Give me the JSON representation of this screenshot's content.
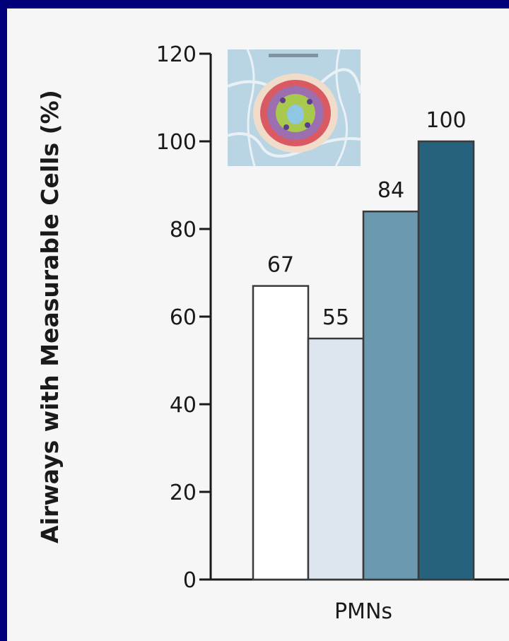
{
  "chart_data": {
    "type": "bar",
    "title": "",
    "xlabel": "",
    "ylabel": "Airways with Measurable Cells (%)",
    "ylim": [
      0,
      120
    ],
    "yticks": [
      0,
      20,
      40,
      60,
      80,
      100,
      120
    ],
    "categories": [
      "PMNs"
    ],
    "series": [
      {
        "values": [
          67
        ],
        "color": "#ffffff"
      },
      {
        "values": [
          55
        ],
        "color": "#dde6ee"
      },
      {
        "values": [
          84
        ],
        "color": "#6a99b0"
      },
      {
        "values": [
          100
        ],
        "color": "#26627d"
      }
    ],
    "grid": false,
    "legend": "none"
  },
  "inset_image": {
    "description_icon": "airway-histology-thumbnail",
    "colors": [
      "#b6d3e3",
      "#c98aa8",
      "#7b5fa6",
      "#d8474f",
      "#a7c94a"
    ]
  },
  "colors": {
    "background": "#00007a",
    "panel": "#f6f6f6",
    "axis": "#1a1a1a"
  }
}
